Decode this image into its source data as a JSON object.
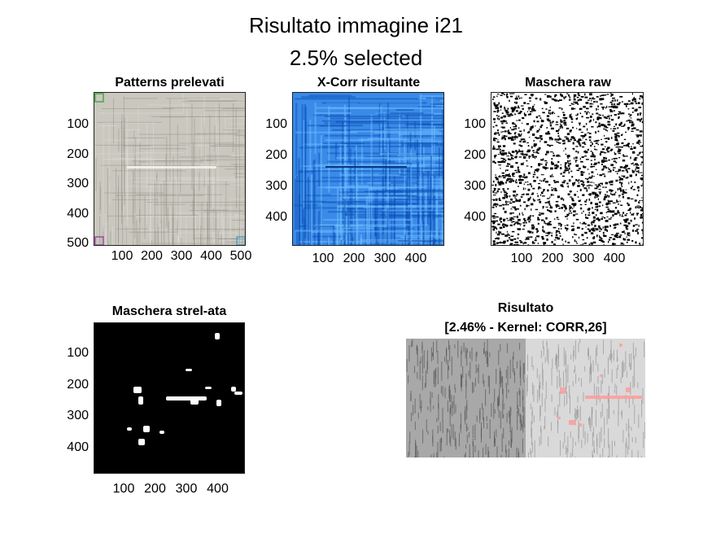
{
  "figure": {
    "title_line1": "Risultato immagine i21",
    "title_line2": "2.5% selected"
  },
  "panels": [
    {
      "id": "patterns",
      "title": "Patterns prelevati",
      "xticks": [
        "100",
        "200",
        "300",
        "400",
        "500"
      ],
      "yticks": [
        "100",
        "200",
        "300",
        "400",
        "500"
      ],
      "palette": {
        "base": "#c9c7be",
        "dark": "#8f8d86",
        "light": "#e3e1d9"
      },
      "markers": [
        {
          "corner": "top-left",
          "color": "#2aa02a"
        },
        {
          "corner": "bottom-left",
          "color": "#a02aa0"
        },
        {
          "corner": "bottom-right",
          "color": "#1fa0d0"
        }
      ]
    },
    {
      "id": "xcorr",
      "title": "X-Corr risultante",
      "xticks": [
        "100",
        "200",
        "300",
        "400"
      ],
      "yticks": [
        "100",
        "200",
        "300",
        "400"
      ],
      "palette": {
        "base": "#3a8ae8",
        "dark": "#0a4fb8",
        "light": "#6ec0ff"
      }
    },
    {
      "id": "mask-raw",
      "title": "Maschera raw",
      "xticks": [
        "100",
        "200",
        "300",
        "400"
      ],
      "yticks": [
        "100",
        "200",
        "300",
        "400"
      ],
      "palette": {
        "base": "#ffffff",
        "dark": "#000000",
        "light": "#ffffff"
      }
    },
    {
      "id": "mask-strel",
      "title": "Maschera strel-ata",
      "xticks": [
        "100",
        "200",
        "300",
        "400"
      ],
      "yticks": [
        "100",
        "200",
        "300",
        "400"
      ],
      "palette": {
        "base": "#000000",
        "dark": "#000000",
        "light": "#ffffff"
      }
    },
    {
      "id": "result",
      "title_line1": "Risultato",
      "title_line2": "[2.46% - Kernel: CORR,26]",
      "palette": {
        "base": "#c8c8c8",
        "dark": "#6a6a6a",
        "light": "#eeeeee",
        "highlight": "#ff9a9a"
      }
    }
  ],
  "chart_data": [
    {
      "type": "heatmap",
      "title": "Patterns prelevati",
      "xlim": [
        0,
        512
      ],
      "ylim": [
        512,
        0
      ],
      "xticks": [
        100,
        200,
        300,
        400,
        500
      ],
      "yticks": [
        100,
        200,
        300,
        400,
        500
      ]
    },
    {
      "type": "heatmap",
      "title": "X-Corr risultante",
      "xlim": [
        0,
        490
      ],
      "ylim": [
        490,
        0
      ],
      "xticks": [
        100,
        200,
        300,
        400
      ],
      "yticks": [
        100,
        200,
        300,
        400
      ]
    },
    {
      "type": "heatmap",
      "title": "Maschera raw",
      "xlim": [
        0,
        490
      ],
      "ylim": [
        490,
        0
      ],
      "xticks": [
        100,
        200,
        300,
        400
      ],
      "yticks": [
        100,
        200,
        300,
        400
      ]
    },
    {
      "type": "heatmap",
      "title": "Maschera strel-ata",
      "xlim": [
        0,
        490
      ],
      "ylim": [
        490,
        0
      ],
      "xticks": [
        100,
        200,
        300,
        400
      ],
      "yticks": [
        100,
        200,
        300,
        400
      ]
    },
    {
      "type": "heatmap",
      "title": "Risultato [2.46% - Kernel: CORR,26]",
      "selected_percent": 2.46,
      "kernel": "CORR,26"
    }
  ]
}
